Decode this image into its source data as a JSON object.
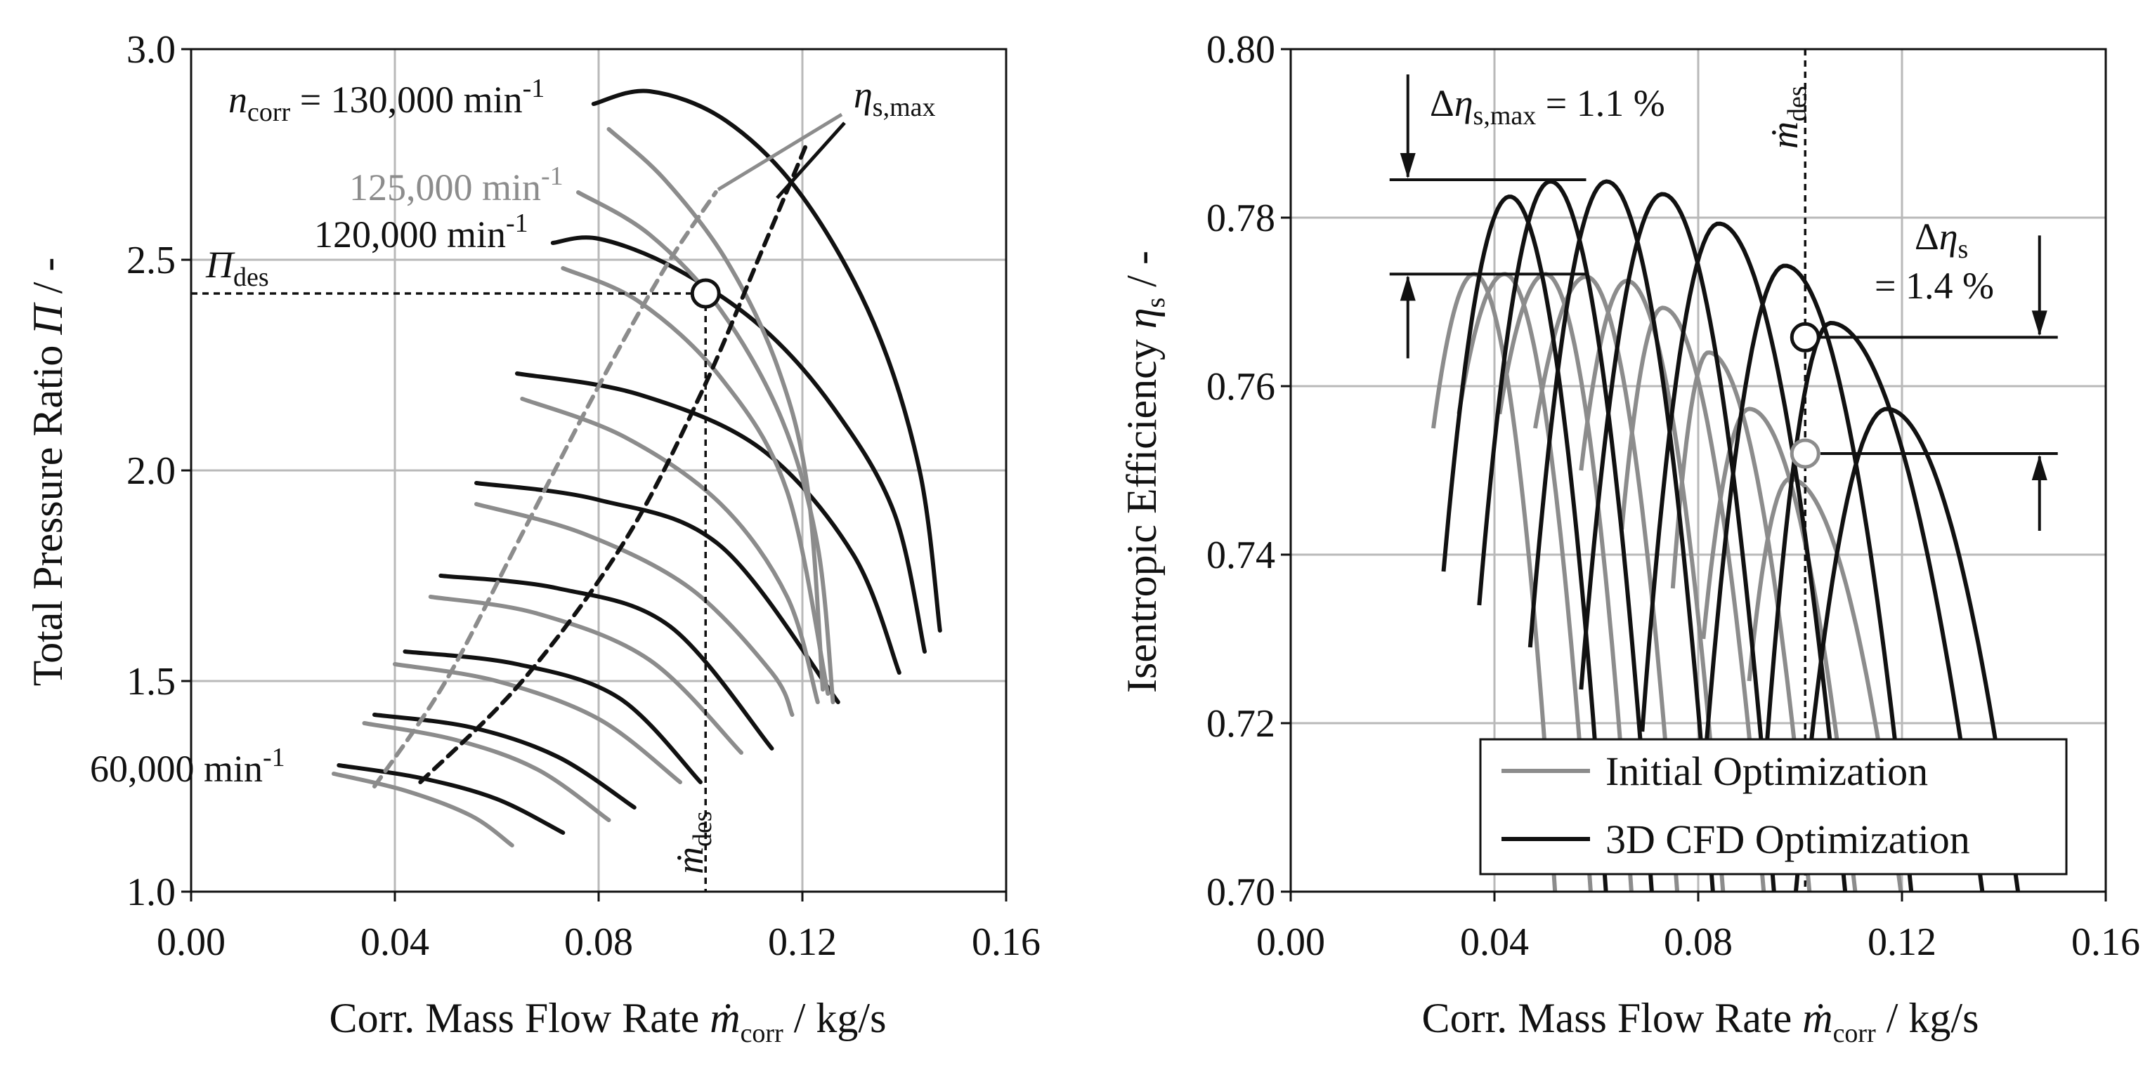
{
  "colors": {
    "initial": "#8c8c8c",
    "cfd": "#111111",
    "grid": "#b9b9b9",
    "axis": "#111111"
  },
  "chart_data": [
    {
      "type": "line",
      "title": "",
      "xlabel": "Corr. Mass Flow Rate",
      "xlabel_sym": "ṁ",
      "xlabel_sub": "corr",
      "xlabel_unit": " / kg/s",
      "ylabel": "Total Pressure Ratio",
      "ylabel_sym": "Π",
      "ylabel_unit": " / -",
      "xlim": [
        0,
        0.16
      ],
      "ylim": [
        1.0,
        3.0
      ],
      "xticks": [
        0,
        0.04,
        0.08,
        0.12,
        0.16
      ],
      "xtick_labels": [
        "0.00",
        "0.04",
        "0.08",
        "0.12",
        "0.16"
      ],
      "yticks": [
        1.0,
        1.5,
        2.0,
        2.5,
        3.0
      ],
      "ytick_labels": [
        "1.0",
        "1.5",
        "2.0",
        "2.5",
        "3.0"
      ],
      "grid": true,
      "series": [
        {
          "name": "CFD 60,000",
          "group": "cfd",
          "x": [
            0.029,
            0.045,
            0.06,
            0.073
          ],
          "y": [
            1.3,
            1.27,
            1.22,
            1.14
          ]
        },
        {
          "name": "CFD 70,000",
          "group": "cfd",
          "x": [
            0.036,
            0.055,
            0.072,
            0.087
          ],
          "y": [
            1.42,
            1.39,
            1.32,
            1.2
          ]
        },
        {
          "name": "CFD 80,000",
          "group": "cfd",
          "x": [
            0.042,
            0.064,
            0.084,
            0.1
          ],
          "y": [
            1.57,
            1.54,
            1.46,
            1.26
          ]
        },
        {
          "name": "CFD 90,000",
          "group": "cfd",
          "x": [
            0.049,
            0.072,
            0.094,
            0.114
          ],
          "y": [
            1.75,
            1.72,
            1.63,
            1.34
          ]
        },
        {
          "name": "CFD 100,000",
          "group": "cfd",
          "x": [
            0.056,
            0.08,
            0.104,
            0.127
          ],
          "y": [
            1.97,
            1.93,
            1.82,
            1.45
          ]
        },
        {
          "name": "CFD 110,000",
          "group": "cfd",
          "x": [
            0.064,
            0.088,
            0.112,
            0.13,
            0.139
          ],
          "y": [
            2.23,
            2.18,
            2.05,
            1.8,
            1.52
          ]
        },
        {
          "name": "CFD 120,000",
          "group": "cfd",
          "x": [
            0.071,
            0.08,
            0.095,
            0.112,
            0.126,
            0.138,
            0.144
          ],
          "y": [
            2.54,
            2.55,
            2.48,
            2.34,
            2.15,
            1.9,
            1.57
          ]
        },
        {
          "name": "CFD 130,000",
          "group": "cfd",
          "x": [
            0.079,
            0.09,
            0.105,
            0.12,
            0.134,
            0.143,
            0.147
          ],
          "y": [
            2.87,
            2.9,
            2.83,
            2.65,
            2.35,
            2.0,
            1.62
          ]
        },
        {
          "name": "Init 60,000",
          "group": "initial",
          "x": [
            0.028,
            0.042,
            0.055,
            0.063
          ],
          "y": [
            1.28,
            1.24,
            1.18,
            1.11
          ]
        },
        {
          "name": "Init 70,000",
          "group": "initial",
          "x": [
            0.034,
            0.052,
            0.068,
            0.082
          ],
          "y": [
            1.4,
            1.36,
            1.29,
            1.17
          ]
        },
        {
          "name": "Init 80,000",
          "group": "initial",
          "x": [
            0.04,
            0.06,
            0.08,
            0.096
          ],
          "y": [
            1.54,
            1.5,
            1.41,
            1.26
          ]
        },
        {
          "name": "Init 90,000",
          "group": "initial",
          "x": [
            0.047,
            0.068,
            0.09,
            0.108
          ],
          "y": [
            1.7,
            1.66,
            1.55,
            1.33
          ]
        },
        {
          "name": "Init 100,000",
          "group": "initial",
          "x": [
            0.056,
            0.077,
            0.098,
            0.114,
            0.118
          ],
          "y": [
            1.92,
            1.85,
            1.72,
            1.52,
            1.42
          ]
        },
        {
          "name": "Init 110,000",
          "group": "initial",
          "x": [
            0.065,
            0.085,
            0.104,
            0.117,
            0.123
          ],
          "y": [
            2.17,
            2.08,
            1.92,
            1.7,
            1.45
          ]
        },
        {
          "name": "Init 120,000",
          "group": "initial",
          "x": [
            0.073,
            0.088,
            0.104,
            0.117,
            0.125
          ],
          "y": [
            2.48,
            2.4,
            2.22,
            1.95,
            1.47
          ]
        },
        {
          "name": "Init 125,000",
          "group": "initial",
          "x": [
            0.076,
            0.09,
            0.104,
            0.116,
            0.123,
            0.126
          ],
          "y": [
            2.66,
            2.56,
            2.38,
            2.12,
            1.82,
            1.45
          ]
        },
        {
          "name": "Init 130,000",
          "group": "initial",
          "x": [
            0.082,
            0.093,
            0.105,
            0.115,
            0.121,
            0.124
          ],
          "y": [
            2.81,
            2.69,
            2.5,
            2.25,
            1.96,
            1.48
          ]
        },
        {
          "name": "Init ηs,max line",
          "group": "initial",
          "dashed": true,
          "x": [
            0.036,
            0.05,
            0.065,
            0.08,
            0.093,
            0.103
          ],
          "y": [
            1.25,
            1.5,
            1.85,
            2.2,
            2.48,
            2.66
          ]
        },
        {
          "name": "CFD ηs,max line",
          "group": "cfd",
          "dashed": true,
          "x": [
            0.045,
            0.065,
            0.085,
            0.1,
            0.112,
            0.121
          ],
          "y": [
            1.26,
            1.5,
            1.83,
            2.18,
            2.52,
            2.78
          ]
        }
      ],
      "guides": {
        "mdot_des": 0.101,
        "pi_des": 2.42
      },
      "design_point": {
        "x": 0.101,
        "y": 2.42
      },
      "annotations": {
        "n130_sym": "n",
        "n130_sub": "corr",
        "n130_text": " = 130,000 min",
        "n125_text": "125,000 min",
        "n120_text": "120,000 min",
        "n60_text": "60,000 min",
        "exponent": "-1",
        "pi_des_sym": "Π",
        "des_sub": "des",
        "eta_sym": "η",
        "eta_sub": "s,max",
        "mdot_sym": "ṁ"
      }
    },
    {
      "type": "line",
      "title": "",
      "xlabel": "Corr. Mass Flow Rate",
      "xlabel_sym": "ṁ",
      "xlabel_sub": "corr",
      "xlabel_unit": " / kg/s",
      "ylabel": "Isentropic Efficiency",
      "ylabel_sym": "η",
      "ylabel_sub": "s",
      "ylabel_unit": " / -",
      "xlim": [
        0,
        0.16
      ],
      "ylim": [
        0.7,
        0.8
      ],
      "xticks": [
        0,
        0.04,
        0.08,
        0.12,
        0.16
      ],
      "xtick_labels": [
        "0.00",
        "0.04",
        "0.08",
        "0.12",
        "0.16"
      ],
      "yticks": [
        0.7,
        0.72,
        0.74,
        0.76,
        0.78,
        0.8
      ],
      "ytick_labels": [
        "0.70",
        "0.72",
        "0.74",
        "0.76",
        "0.78",
        "0.80"
      ],
      "grid": true,
      "legend_position": "bottom-right",
      "legend": [
        {
          "label": "Initial Optimization",
          "group": "initial"
        },
        {
          "label": "3D CFD Optimization",
          "group": "cfd"
        }
      ],
      "parabola_series": [
        {
          "name": "Init 60,000",
          "group": "initial",
          "peak_x": 0.036,
          "peak_y": 0.7733,
          "x_left": 0.028,
          "y_left": 0.755,
          "x_right": 0.052,
          "y_right": 0.699
        },
        {
          "name": "Init 70,000",
          "group": "initial",
          "peak_x": 0.042,
          "peak_y": 0.7733,
          "x_left": 0.033,
          "y_left": 0.7567,
          "x_right": 0.059,
          "y_right": 0.699
        },
        {
          "name": "Init 80,000",
          "group": "initial",
          "peak_x": 0.05,
          "peak_y": 0.7733,
          "x_left": 0.041,
          "y_left": 0.7567,
          "x_right": 0.067,
          "y_right": 0.699
        },
        {
          "name": "Init 90,000",
          "group": "initial",
          "peak_x": 0.058,
          "peak_y": 0.773,
          "x_left": 0.048,
          "y_left": 0.755,
          "x_right": 0.076,
          "y_right": 0.699
        },
        {
          "name": "Init 100,000",
          "group": "initial",
          "peak_x": 0.066,
          "peak_y": 0.7725,
          "x_left": 0.057,
          "y_left": 0.75,
          "x_right": 0.085,
          "y_right": 0.699
        },
        {
          "name": "Init 110,000",
          "group": "initial",
          "peak_x": 0.073,
          "peak_y": 0.7693,
          "x_left": 0.065,
          "y_left": 0.743,
          "x_right": 0.093,
          "y_right": 0.699
        },
        {
          "name": "Init 120,000",
          "group": "initial",
          "peak_x": 0.082,
          "peak_y": 0.764,
          "x_left": 0.075,
          "y_left": 0.736,
          "x_right": 0.102,
          "y_right": 0.699
        },
        {
          "name": "Init 125,000",
          "group": "initial",
          "peak_x": 0.09,
          "peak_y": 0.7573,
          "x_left": 0.081,
          "y_left": 0.73,
          "x_right": 0.111,
          "y_right": 0.699
        },
        {
          "name": "Init 130,000",
          "group": "initial",
          "peak_x": 0.098,
          "peak_y": 0.749,
          "x_left": 0.09,
          "y_left": 0.725,
          "x_right": 0.12,
          "y_right": 0.699
        },
        {
          "name": "CFD 60,000",
          "group": "cfd",
          "peak_x": 0.043,
          "peak_y": 0.7825,
          "x_left": 0.03,
          "y_left": 0.738,
          "x_right": 0.062,
          "y_right": 0.699
        },
        {
          "name": "CFD 70,000",
          "group": "cfd",
          "peak_x": 0.051,
          "peak_y": 0.7843,
          "x_left": 0.037,
          "y_left": 0.734,
          "x_right": 0.071,
          "y_right": 0.699
        },
        {
          "name": "CFD 80,000",
          "group": "cfd",
          "peak_x": 0.062,
          "peak_y": 0.7843,
          "x_left": 0.047,
          "y_left": 0.729,
          "x_right": 0.083,
          "y_right": 0.699
        },
        {
          "name": "CFD 90,000",
          "group": "cfd",
          "peak_x": 0.073,
          "peak_y": 0.7828,
          "x_left": 0.057,
          "y_left": 0.724,
          "x_right": 0.095,
          "y_right": 0.699
        },
        {
          "name": "CFD 100,000",
          "group": "cfd",
          "peak_x": 0.084,
          "peak_y": 0.7793,
          "x_left": 0.069,
          "y_left": 0.719,
          "x_right": 0.109,
          "y_right": 0.699
        },
        {
          "name": "CFD 110,000",
          "group": "cfd",
          "peak_x": 0.097,
          "peak_y": 0.7743,
          "x_left": 0.081,
          "y_left": 0.713,
          "x_right": 0.122,
          "y_right": 0.699
        },
        {
          "name": "CFD 120,000",
          "group": "cfd",
          "peak_x": 0.106,
          "peak_y": 0.7675,
          "x_left": 0.092,
          "y_left": 0.705,
          "x_right": 0.136,
          "y_right": 0.699
        },
        {
          "name": "CFD 130,000",
          "group": "cfd",
          "peak_x": 0.117,
          "peak_y": 0.7573,
          "x_left": 0.099,
          "y_left": 0.699,
          "x_right": 0.143,
          "y_right": 0.699
        }
      ],
      "guides": {
        "mdot_des": 0.101
      },
      "design_points": [
        {
          "group": "cfd",
          "x": 0.101,
          "y": 0.7658
        },
        {
          "group": "initial",
          "x": 0.101,
          "y": 0.752
        }
      ],
      "delta_markers": [
        {
          "label": "Δη_s,max",
          "value": "1.1 %",
          "ref_x": 0.058,
          "y_low": 0.7733,
          "y_high": 0.7845,
          "arrow_x": 0.023
        },
        {
          "label": "Δη_s",
          "value": "1.4 %",
          "ref_x": 0.104,
          "y_low": 0.752,
          "y_high": 0.7658,
          "arrow_x": 0.147
        }
      ],
      "annotations": {
        "delta_max_pre": "Δ",
        "eta_sym": "η",
        "delta_max_sub": "s,max",
        "delta_max_val": " = 1.1 %",
        "delta_s_pre": "Δ",
        "delta_s_sub": "s",
        "delta_s_val": "= 1.4 %",
        "mdot_sym": "ṁ",
        "des_sub": "des"
      }
    }
  ]
}
